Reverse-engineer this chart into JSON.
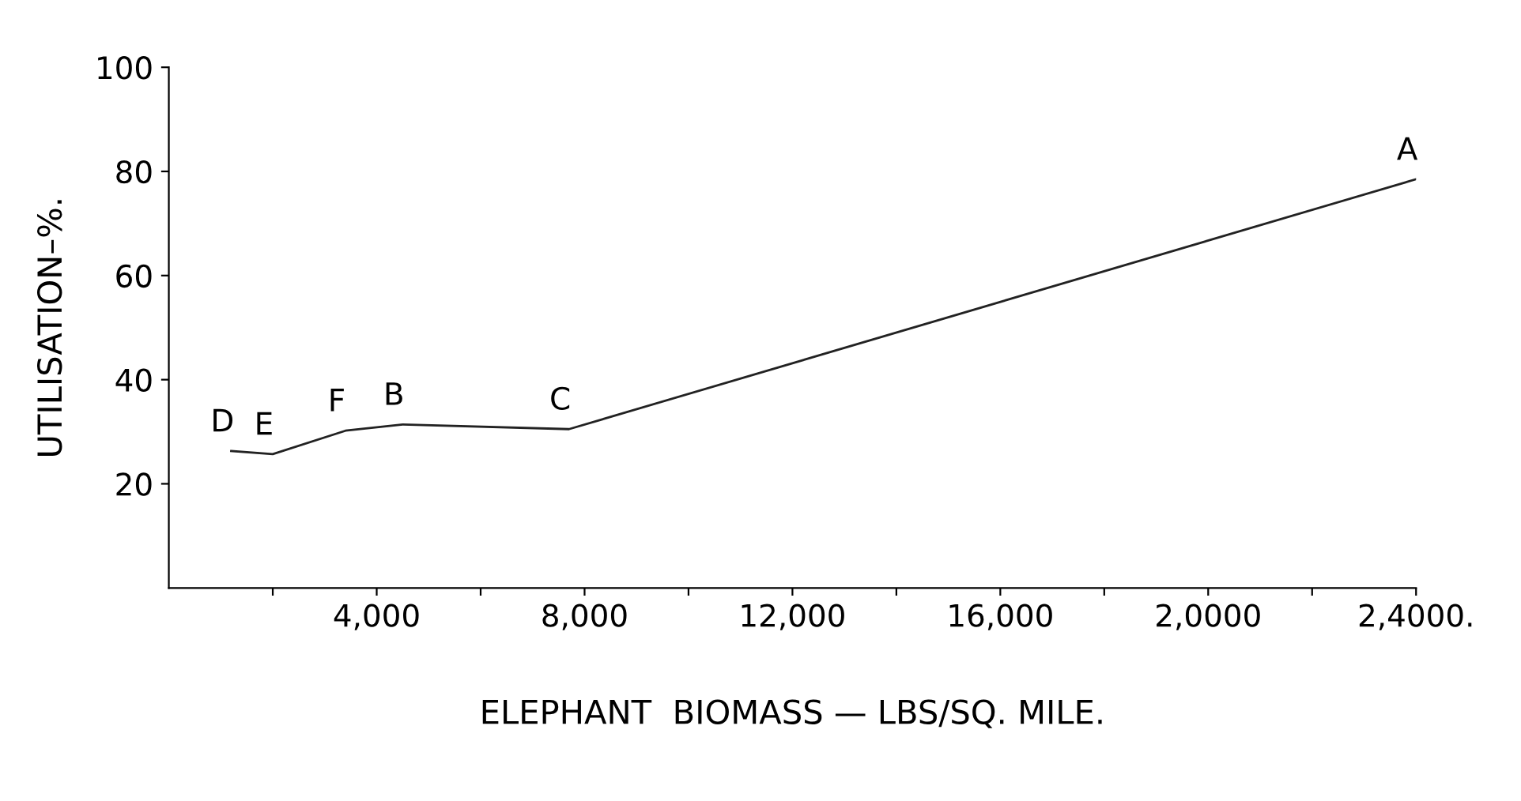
{
  "chart_data": {
    "type": "line",
    "xlabel": "ELEPHANT  BIOMASS — LBS/SQ. MILE.",
    "ylabel": "UTILISATION–%.",
    "series": [
      {
        "color": "#222222",
        "x": [
          1200,
          2000,
          3400,
          4500,
          7700,
          24000
        ],
        "values": [
          26.3,
          25.7,
          30.2,
          31.4,
          30.5,
          78.5
        ]
      }
    ],
    "xlim": [
      0,
      24000
    ],
    "ylim": [
      0,
      100
    ],
    "xticks": [
      {
        "value": 2000,
        "label": null
      },
      {
        "value": 4000,
        "label": "4,000"
      },
      {
        "value": 6000,
        "label": null
      },
      {
        "value": 8000,
        "label": "8,000"
      },
      {
        "value": 10000,
        "label": null
      },
      {
        "value": 12000,
        "label": "12,000"
      },
      {
        "value": 14000,
        "label": null
      },
      {
        "value": 16000,
        "label": "16,000"
      },
      {
        "value": 18000,
        "label": null
      },
      {
        "value": 20000,
        "label": "2,0000"
      },
      {
        "value": 22000,
        "label": null
      },
      {
        "value": 24000,
        "label": "2,4000."
      }
    ],
    "yticks": [
      20,
      40,
      60,
      80,
      100
    ],
    "annotations": [
      {
        "text": "D",
        "x": 1200,
        "y": 26.3
      },
      {
        "text": "E",
        "x": 2000,
        "y": 25.7
      },
      {
        "text": "F",
        "x": 3400,
        "y": 30.2
      },
      {
        "text": "B",
        "x": 4500,
        "y": 31.4
      },
      {
        "text": "C",
        "x": 7700,
        "y": 30.5
      },
      {
        "text": "A",
        "x": 24000,
        "y": 78.5
      }
    ],
    "grid": false,
    "legend": false,
    "marker": "none",
    "line_style": "solid"
  }
}
